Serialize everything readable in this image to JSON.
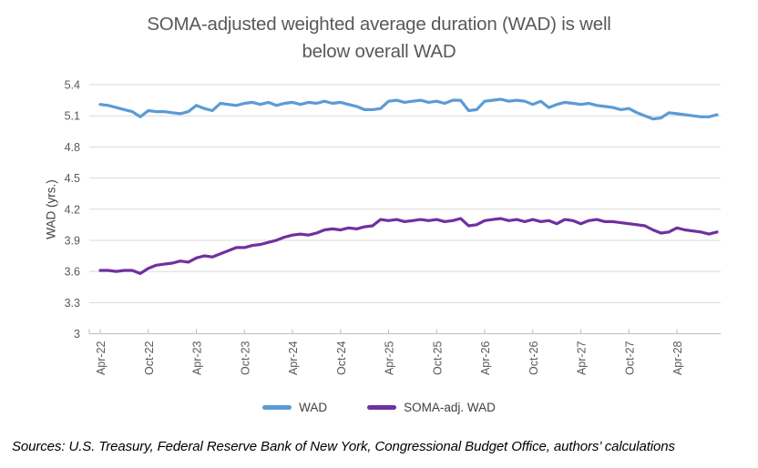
{
  "title_lines": [
    "SOMA-adjusted weighted average duration (WAD) is well",
    "below overall WAD"
  ],
  "footer": "Sources: U.S. Treasury, Federal Reserve Bank of New York, Congressional Budget Office, authors’ calculations",
  "colors": {
    "wad_line": "#5B9BD5",
    "soma_line": "#7030A0",
    "gridline": "#D9D9D9",
    "axis_line": "#BFBFBF",
    "tick_text": "#595959",
    "title_text": "#595959"
  },
  "chart_data": {
    "type": "line",
    "title": "SOMA-adjusted weighted average duration (WAD) is well below overall WAD",
    "xlabel": "",
    "ylabel": "WAD (yrs.)",
    "ylim": [
      3,
      5.4
    ],
    "yticks": [
      3,
      3.3,
      3.6,
      3.9,
      4.2,
      4.5,
      4.8,
      5.1,
      5.4
    ],
    "xtick_every": 6,
    "xticklabels_shown": [
      "Apr-22",
      "Oct-22",
      "Apr-23",
      "Oct-23",
      "Apr-24",
      "Oct-24",
      "Apr-25",
      "Oct-25",
      "Apr-26",
      "Oct-26",
      "Apr-27",
      "Oct-27",
      "Apr-28"
    ],
    "grid": "horizontal",
    "legend_position": "bottom",
    "x": [
      "Apr-22",
      "May-22",
      "Jun-22",
      "Jul-22",
      "Aug-22",
      "Sep-22",
      "Oct-22",
      "Nov-22",
      "Dec-22",
      "Jan-23",
      "Feb-23",
      "Mar-23",
      "Apr-23",
      "May-23",
      "Jun-23",
      "Jul-23",
      "Aug-23",
      "Sep-23",
      "Oct-23",
      "Nov-23",
      "Dec-23",
      "Jan-24",
      "Feb-24",
      "Mar-24",
      "Apr-24",
      "May-24",
      "Jun-24",
      "Jul-24",
      "Aug-24",
      "Sep-24",
      "Oct-24",
      "Nov-24",
      "Dec-24",
      "Jan-25",
      "Feb-25",
      "Mar-25",
      "Apr-25",
      "May-25",
      "Jun-25",
      "Jul-25",
      "Aug-25",
      "Sep-25",
      "Oct-25",
      "Nov-25",
      "Dec-25",
      "Jan-26",
      "Feb-26",
      "Mar-26",
      "Apr-26",
      "May-26",
      "Jun-26",
      "Jul-26",
      "Aug-26",
      "Sep-26",
      "Oct-26",
      "Nov-26",
      "Dec-26",
      "Jan-27",
      "Feb-27",
      "Mar-27",
      "Apr-27",
      "May-27",
      "Jun-27",
      "Jul-27",
      "Aug-27",
      "Sep-27",
      "Oct-27",
      "Nov-27",
      "Dec-27",
      "Jan-28",
      "Feb-28",
      "Mar-28",
      "Apr-28",
      "May-28",
      "Jun-28",
      "Jul-28",
      "Aug-28",
      "Sep-28"
    ],
    "series": [
      {
        "name": "WAD",
        "color": "#5B9BD5",
        "values": [
          5.21,
          5.2,
          5.18,
          5.16,
          5.14,
          5.09,
          5.15,
          5.14,
          5.14,
          5.13,
          5.12,
          5.14,
          5.2,
          5.17,
          5.15,
          5.22,
          5.21,
          5.2,
          5.22,
          5.23,
          5.21,
          5.23,
          5.2,
          5.22,
          5.23,
          5.21,
          5.23,
          5.22,
          5.24,
          5.22,
          5.23,
          5.21,
          5.19,
          5.16,
          5.16,
          5.17,
          5.24,
          5.25,
          5.23,
          5.24,
          5.25,
          5.23,
          5.24,
          5.22,
          5.25,
          5.25,
          5.15,
          5.16,
          5.24,
          5.25,
          5.26,
          5.24,
          5.25,
          5.24,
          5.21,
          5.24,
          5.18,
          5.21,
          5.23,
          5.22,
          5.21,
          5.22,
          5.2,
          5.19,
          5.18,
          5.16,
          5.17,
          5.13,
          5.1,
          5.07,
          5.08,
          5.13,
          5.12,
          5.11,
          5.1,
          5.09,
          5.09,
          5.11
        ]
      },
      {
        "name": "SOMA-adj. WAD",
        "color": "#7030A0",
        "values": [
          3.61,
          3.61,
          3.6,
          3.61,
          3.61,
          3.58,
          3.63,
          3.66,
          3.67,
          3.68,
          3.7,
          3.69,
          3.73,
          3.75,
          3.74,
          3.77,
          3.8,
          3.83,
          3.83,
          3.85,
          3.86,
          3.88,
          3.9,
          3.93,
          3.95,
          3.96,
          3.95,
          3.97,
          4.0,
          4.01,
          4.0,
          4.02,
          4.01,
          4.03,
          4.04,
          4.1,
          4.09,
          4.1,
          4.08,
          4.09,
          4.1,
          4.09,
          4.1,
          4.08,
          4.09,
          4.11,
          4.04,
          4.05,
          4.09,
          4.1,
          4.11,
          4.09,
          4.1,
          4.08,
          4.1,
          4.08,
          4.09,
          4.06,
          4.1,
          4.09,
          4.06,
          4.09,
          4.1,
          4.08,
          4.08,
          4.07,
          4.06,
          4.05,
          4.04,
          4.0,
          3.97,
          3.98,
          4.02,
          4.0,
          3.99,
          3.98,
          3.96,
          3.98
        ]
      }
    ]
  }
}
